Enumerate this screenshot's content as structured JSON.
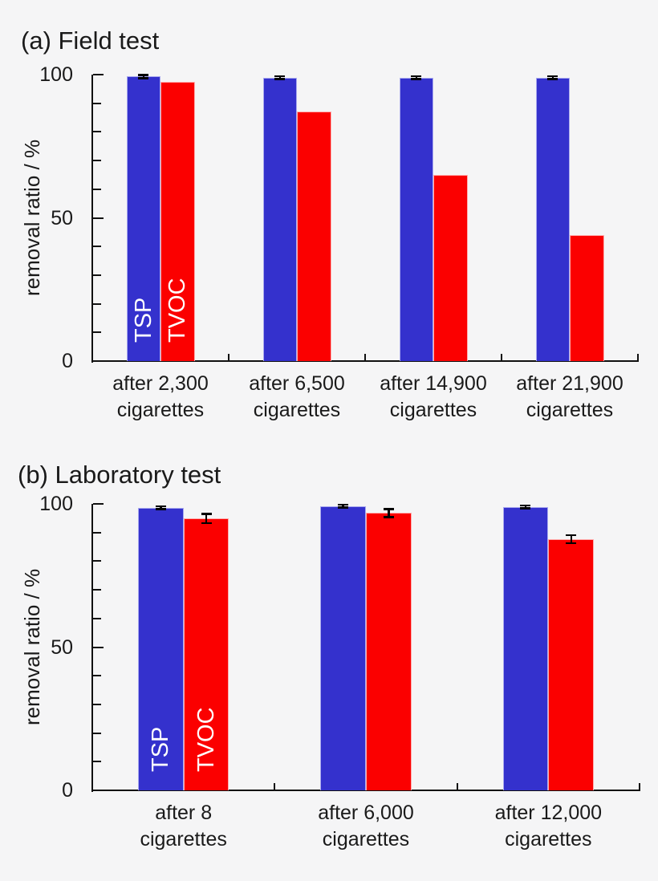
{
  "figure": {
    "background": "#f5f5f6",
    "text_color": "#1a1a1a",
    "axis_color": "#111111"
  },
  "colors": {
    "tsp": "#3431cd",
    "tsp_border": "#a9a9ef",
    "tvoc": "#fb0000",
    "tvoc_border": "#ffadad",
    "error_bar": "#000000",
    "bar_label_text": "#ffffff"
  },
  "chart_data": [
    {
      "type": "bar",
      "title": "(a) Field test",
      "xlabel": "",
      "ylabel": "removal ratio / %",
      "ylim": [
        0,
        100
      ],
      "yticks_major": [
        0,
        50,
        100
      ],
      "ytick_minor_step": 10,
      "grid": false,
      "legend_position": "rotated-labels-inside-first-group-bars",
      "categories": [
        [
          "after 2,300",
          "cigarettes"
        ],
        [
          "after 6,500",
          "cigarettes"
        ],
        [
          "after 14,900",
          "cigarettes"
        ],
        [
          "after 21,900",
          "cigarettes"
        ]
      ],
      "series": [
        {
          "name": "TSP",
          "color_key": "tsp",
          "values": [
            99.3,
            98.9,
            98.9,
            99.0
          ],
          "errors": [
            0.6,
            0.5,
            0.5,
            0.5
          ]
        },
        {
          "name": "TVOC",
          "color_key": "tvoc",
          "values": [
            97.5,
            87.0,
            65.0,
            44.0
          ],
          "errors": [
            null,
            null,
            null,
            null
          ]
        }
      ],
      "series_labels_in_first_group": true
    },
    {
      "type": "bar",
      "title": "(b) Laboratory test",
      "xlabel": "",
      "ylabel": "removal ratio / %",
      "ylim": [
        0,
        100
      ],
      "yticks_major": [
        0,
        50,
        100
      ],
      "ytick_minor_step": 10,
      "grid": false,
      "legend_position": "rotated-labels-inside-first-group-bars",
      "categories": [
        [
          "after 8",
          "cigarettes"
        ],
        [
          "after 6,000",
          "cigarettes"
        ],
        [
          "after 12,000",
          "cigarettes"
        ]
      ],
      "series": [
        {
          "name": "TSP",
          "color_key": "tsp",
          "values": [
            98.7,
            99.2,
            98.9
          ],
          "errors": [
            0.5,
            0.5,
            0.5
          ]
        },
        {
          "name": "TVOC",
          "color_key": "tvoc",
          "values": [
            94.9,
            96.8,
            87.7
          ],
          "errors": [
            1.6,
            1.4,
            1.4
          ]
        }
      ],
      "series_labels_in_first_group": true
    }
  ]
}
